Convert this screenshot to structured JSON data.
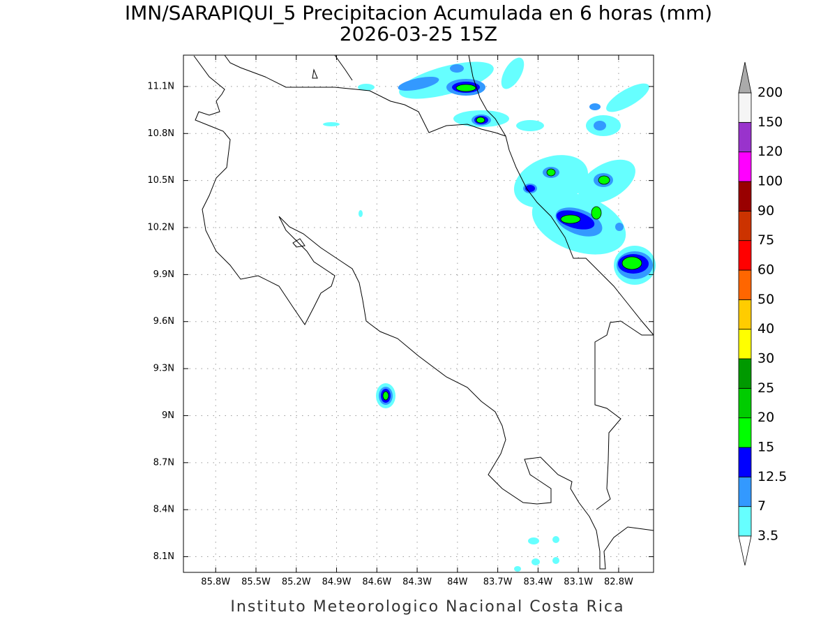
{
  "title": "IMN/SARAPIQUI_5 Precipitacion Acumulada en 6 horas (mm)",
  "subtitle": "2026-03-25 15Z",
  "map": {
    "xlim": [
      -86.04,
      -82.54
    ],
    "ylim": [
      8.0,
      11.3
    ],
    "xticks": [
      {
        "value": -85.8,
        "label": "85.8W"
      },
      {
        "value": -85.5,
        "label": "85.5W"
      },
      {
        "value": -85.2,
        "label": "85.2W"
      },
      {
        "value": -84.9,
        "label": "84.9W"
      },
      {
        "value": -84.6,
        "label": "84.6W"
      },
      {
        "value": -84.3,
        "label": "84.3W"
      },
      {
        "value": -84,
        "label": "84W"
      },
      {
        "value": -83.7,
        "label": "83.7W"
      },
      {
        "value": -83.4,
        "label": "83.4W"
      },
      {
        "value": -83.1,
        "label": "83.1W"
      },
      {
        "value": -82.8,
        "label": "82.8W"
      }
    ],
    "yticks": [
      {
        "value": 8.1,
        "label": "8.1N"
      },
      {
        "value": 8.4,
        "label": "8.4N"
      },
      {
        "value": 8.7,
        "label": "8.7N"
      },
      {
        "value": 9,
        "label": "9N"
      },
      {
        "value": 9.3,
        "label": "9.3N"
      },
      {
        "value": 9.6,
        "label": "9.6N"
      },
      {
        "value": 9.9,
        "label": "9.9N"
      },
      {
        "value": 10.2,
        "label": "10.2N"
      },
      {
        "value": 10.5,
        "label": "10.5N"
      },
      {
        "value": 10.8,
        "label": "10.8N"
      },
      {
        "value": 11.1,
        "label": "11.1N"
      }
    ],
    "grid": true
  },
  "colorbar": {
    "levels": [
      3.5,
      7,
      12.5,
      15,
      20,
      25,
      30,
      40,
      50,
      60,
      75,
      90,
      100,
      120,
      150,
      200
    ],
    "colors": [
      "#66ffff",
      "#3399ff",
      "#0000ff",
      "#00ff00",
      "#00cc00",
      "#009900",
      "#ffff00",
      "#ffcc00",
      "#ff6600",
      "#ff0000",
      "#cc3300",
      "#990000",
      "#ff00ff",
      "#9933cc",
      "#f5f5f5"
    ],
    "over_color": "#aaaaaa",
    "under_color": "#ffffff"
  },
  "footer": "Instituto Meteorologico Nacional Costa Rica"
}
